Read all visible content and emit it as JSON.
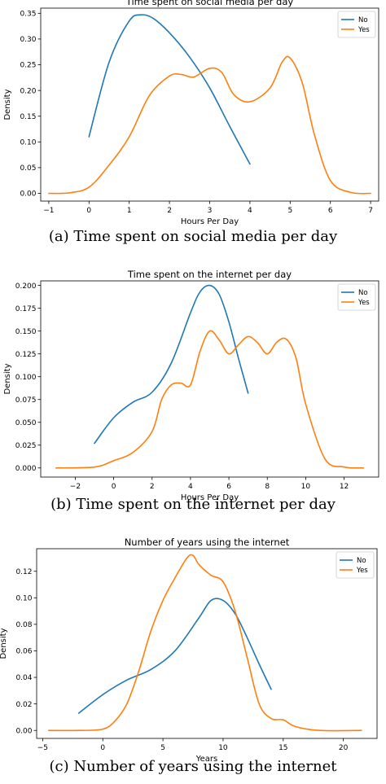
{
  "colors": {
    "no": "#1f77b4",
    "yes": "#ff7f0e"
  },
  "chart_data": [
    {
      "type": "line",
      "title": "Time spent on social media per day",
      "xlabel": "Hours Per Day",
      "ylabel": "Density",
      "xlim": [
        -1.2,
        7.2
      ],
      "ylim": [
        -0.015,
        0.36
      ],
      "xticks": [
        -1,
        0,
        1,
        2,
        3,
        4,
        5,
        6,
        7
      ],
      "yticks": [
        0.0,
        0.05,
        0.1,
        0.15,
        0.2,
        0.25,
        0.3,
        0.35
      ],
      "legend": {
        "placement": "top-right",
        "entries": [
          "No",
          "Yes"
        ]
      },
      "caption": "(a) Time spent on social media per day",
      "series": [
        {
          "name": "No",
          "x": [
            0,
            0.5,
            1.0,
            1.3,
            1.6,
            2.0,
            2.5,
            3.0,
            3.5,
            4.0
          ],
          "y": [
            0.11,
            0.255,
            0.335,
            0.347,
            0.34,
            0.312,
            0.265,
            0.205,
            0.13,
            0.057
          ]
        },
        {
          "name": "Yes",
          "x": [
            -1,
            -0.5,
            0,
            0.5,
            1.0,
            1.5,
            2.0,
            2.3,
            2.6,
            3.0,
            3.3,
            3.6,
            4.0,
            4.5,
            4.8,
            5.0,
            5.3,
            5.6,
            6.0,
            6.5,
            7.0
          ],
          "y": [
            0.0,
            0.001,
            0.012,
            0.055,
            0.11,
            0.19,
            0.228,
            0.231,
            0.226,
            0.243,
            0.235,
            0.192,
            0.178,
            0.205,
            0.255,
            0.263,
            0.215,
            0.115,
            0.025,
            0.002,
            0.0
          ]
        }
      ]
    },
    {
      "type": "line",
      "title": "Time spent on the internet per day",
      "xlabel": "Hours Per Day",
      "ylabel": "Density",
      "xlim": [
        -3.8,
        13.8
      ],
      "ylim": [
        -0.01,
        0.205
      ],
      "xticks": [
        -2,
        0,
        2,
        4,
        6,
        8,
        10,
        12
      ],
      "yticks": [
        0.0,
        0.025,
        0.05,
        0.075,
        0.1,
        0.125,
        0.15,
        0.175,
        0.2
      ],
      "legend": {
        "placement": "top-right",
        "entries": [
          "No",
          "Yes"
        ]
      },
      "caption": "(b) Time spent on the internet per day",
      "series": [
        {
          "name": "No",
          "x": [
            -1,
            0,
            1,
            2,
            3,
            4,
            4.5,
            5,
            5.5,
            6,
            6.5,
            7
          ],
          "y": [
            0.027,
            0.055,
            0.072,
            0.083,
            0.115,
            0.17,
            0.193,
            0.2,
            0.19,
            0.16,
            0.12,
            0.082
          ]
        },
        {
          "name": "Yes",
          "x": [
            -3,
            -1,
            0,
            1,
            2,
            2.5,
            3,
            3.5,
            4,
            4.5,
            5,
            5.5,
            6,
            6.5,
            7,
            7.5,
            8,
            8.5,
            9,
            9.5,
            10,
            11,
            12,
            13
          ],
          "y": [
            0.0,
            0.001,
            0.008,
            0.017,
            0.04,
            0.075,
            0.091,
            0.093,
            0.091,
            0.128,
            0.15,
            0.14,
            0.125,
            0.135,
            0.144,
            0.137,
            0.125,
            0.138,
            0.141,
            0.12,
            0.07,
            0.01,
            0.001,
            0.0
          ]
        }
      ]
    },
    {
      "type": "line",
      "title": "Number of years using the internet",
      "xlabel": "Years",
      "ylabel": "Density",
      "xlim": [
        -5.5,
        22.8
      ],
      "ylim": [
        -0.006,
        0.137
      ],
      "xticks": [
        -5,
        0,
        5,
        10,
        15,
        20
      ],
      "yticks": [
        0.0,
        0.02,
        0.04,
        0.06,
        0.08,
        0.1,
        0.12
      ],
      "legend": {
        "placement": "top-right",
        "entries": [
          "No",
          "Yes"
        ]
      },
      "caption": "(c) Number of years using the internet",
      "series": [
        {
          "name": "No",
          "x": [
            -2,
            0,
            2,
            4,
            6,
            8,
            9,
            10,
            11,
            12,
            13,
            14
          ],
          "y": [
            0.013,
            0.027,
            0.038,
            0.046,
            0.06,
            0.085,
            0.098,
            0.098,
            0.088,
            0.07,
            0.05,
            0.031
          ]
        },
        {
          "name": "Yes",
          "x": [
            -4.5,
            -2,
            0,
            1,
            2,
            3,
            4,
            5,
            6,
            7,
            7.5,
            8,
            9,
            10,
            11,
            12,
            13,
            14,
            15,
            16,
            18,
            21.5
          ],
          "y": [
            0.0,
            0.0,
            0.001,
            0.007,
            0.02,
            0.045,
            0.075,
            0.098,
            0.115,
            0.13,
            0.132,
            0.125,
            0.117,
            0.112,
            0.09,
            0.055,
            0.02,
            0.009,
            0.008,
            0.003,
            0.0,
            0.0
          ]
        }
      ]
    }
  ]
}
